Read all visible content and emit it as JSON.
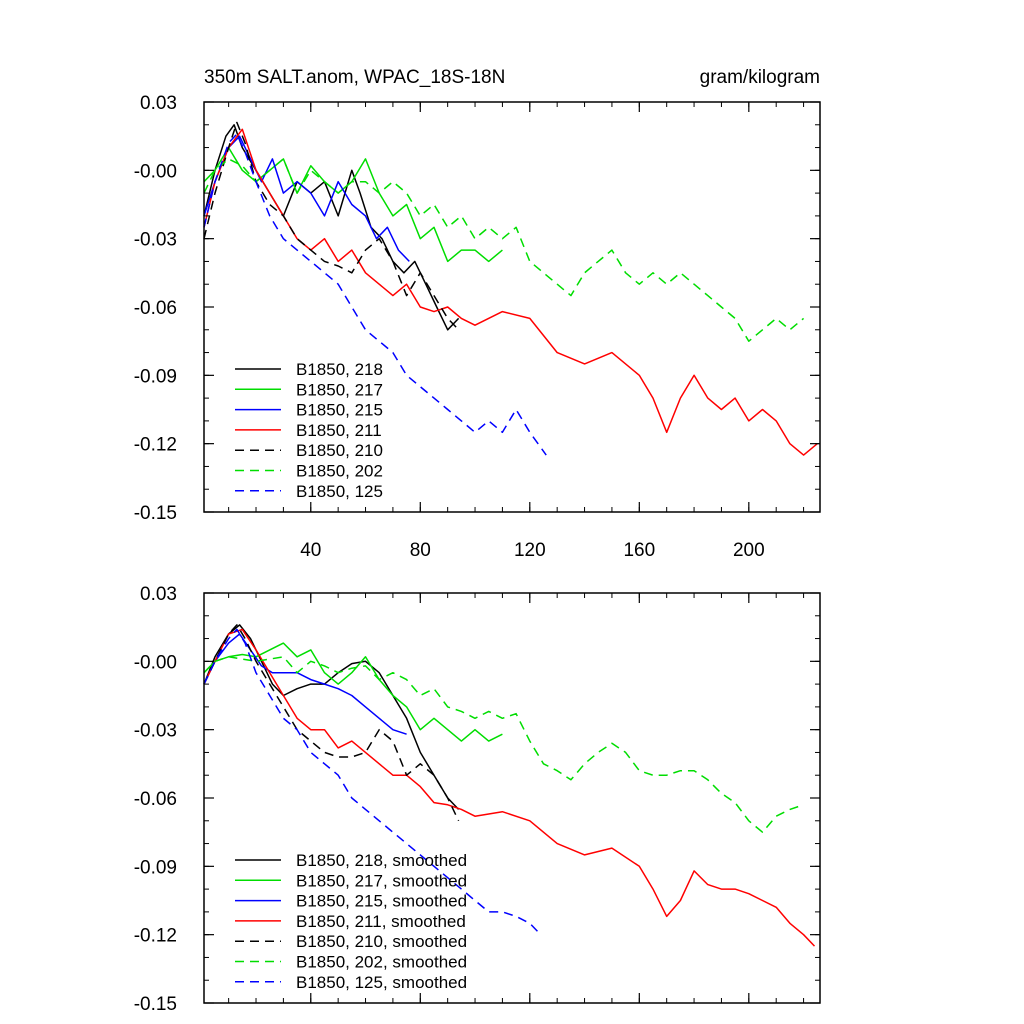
{
  "chart_data": [
    {
      "type": "line",
      "title": "350m SALT.anom, WPAC_18S-18N",
      "units": "gram/kilogram",
      "xlim": [
        1,
        226
      ],
      "ylim": [
        -0.15,
        0.03
      ],
      "xticks": [
        40,
        80,
        120,
        160,
        200
      ],
      "xtick_labels": [
        "40",
        "80",
        "120",
        "160",
        "200"
      ],
      "yticks": [
        0.03,
        0,
        -0.03,
        -0.06,
        -0.09,
        -0.12,
        -0.15
      ],
      "ytick_labels": [
        "0.03",
        "-0.00",
        "-0.03",
        "-0.06",
        "-0.09",
        "-0.12",
        "-0.15"
      ],
      "legend": "bottom-left",
      "series": [
        {
          "name": "B1850, 218",
          "color": "#000000",
          "dash": "solid",
          "x": [
            1,
            5,
            9,
            12,
            15,
            20,
            25,
            30,
            35,
            40,
            45,
            50,
            55,
            58,
            62,
            66,
            70,
            74,
            78,
            82,
            86,
            90,
            94
          ],
          "y": [
            -0.02,
            0.0,
            0.015,
            0.02,
            0.01,
            0.0,
            -0.01,
            -0.02,
            -0.005,
            -0.01,
            -0.005,
            -0.02,
            0.0,
            -0.01,
            -0.025,
            -0.03,
            -0.04,
            -0.045,
            -0.04,
            -0.05,
            -0.06,
            -0.07,
            -0.065
          ]
        },
        {
          "name": "B1850, 217",
          "color": "#00dd00",
          "dash": "solid",
          "x": [
            1,
            5,
            10,
            15,
            20,
            25,
            30,
            35,
            40,
            45,
            50,
            55,
            60,
            65,
            70,
            75,
            80,
            85,
            90,
            95,
            100,
            105,
            110
          ],
          "y": [
            -0.005,
            0.0,
            0.01,
            0.0,
            -0.005,
            0.0,
            0.005,
            -0.01,
            0.002,
            -0.005,
            -0.01,
            -0.005,
            0.005,
            -0.01,
            -0.02,
            -0.015,
            -0.03,
            -0.025,
            -0.04,
            -0.035,
            -0.035,
            -0.04,
            -0.035
          ]
        },
        {
          "name": "B1850, 215",
          "color": "#0000ff",
          "dash": "solid",
          "x": [
            1,
            5,
            10,
            14,
            18,
            22,
            26,
            30,
            35,
            40,
            45,
            50,
            55,
            60,
            64,
            68,
            72,
            76
          ],
          "y": [
            -0.02,
            -0.005,
            0.01,
            0.015,
            0.005,
            -0.005,
            0.005,
            -0.01,
            -0.005,
            -0.01,
            -0.02,
            -0.005,
            -0.015,
            -0.02,
            -0.03,
            -0.025,
            -0.035,
            -0.04
          ]
        },
        {
          "name": "B1850, 211",
          "color": "#ff0000",
          "dash": "solid",
          "x": [
            1,
            5,
            10,
            15,
            20,
            25,
            30,
            35,
            40,
            45,
            50,
            55,
            60,
            65,
            70,
            75,
            80,
            85,
            90,
            95,
            100,
            110,
            120,
            130,
            140,
            150,
            160,
            165,
            170,
            175,
            180,
            185,
            190,
            195,
            200,
            205,
            210,
            215,
            220,
            225
          ],
          "y": [
            -0.025,
            -0.005,
            0.01,
            0.018,
            0.0,
            -0.01,
            -0.02,
            -0.03,
            -0.035,
            -0.03,
            -0.04,
            -0.035,
            -0.045,
            -0.05,
            -0.055,
            -0.05,
            -0.06,
            -0.062,
            -0.06,
            -0.065,
            -0.068,
            -0.062,
            -0.065,
            -0.08,
            -0.085,
            -0.08,
            -0.09,
            -0.1,
            -0.115,
            -0.1,
            -0.09,
            -0.1,
            -0.105,
            -0.1,
            -0.11,
            -0.105,
            -0.11,
            -0.12,
            -0.125,
            -0.12
          ]
        },
        {
          "name": "B1850, 210",
          "color": "#000000",
          "dash": "dashed",
          "x": [
            1,
            5,
            10,
            13,
            16,
            20,
            25,
            30,
            35,
            40,
            45,
            50,
            55,
            60,
            65,
            70,
            75,
            80,
            85,
            90,
            94
          ],
          "y": [
            -0.03,
            -0.01,
            0.01,
            0.021,
            0.012,
            -0.005,
            -0.015,
            -0.02,
            -0.03,
            -0.035,
            -0.04,
            -0.042,
            -0.045,
            -0.035,
            -0.03,
            -0.04,
            -0.055,
            -0.045,
            -0.055,
            -0.065,
            -0.07
          ]
        },
        {
          "name": "B1850, 202",
          "color": "#00dd00",
          "dash": "dashed",
          "x": [
            1,
            5,
            10,
            15,
            20,
            25,
            30,
            35,
            40,
            45,
            50,
            55,
            60,
            65,
            70,
            75,
            80,
            85,
            90,
            95,
            100,
            105,
            110,
            115,
            120,
            125,
            130,
            135,
            140,
            145,
            150,
            155,
            160,
            165,
            170,
            175,
            180,
            185,
            190,
            195,
            200,
            205,
            210,
            215,
            220
          ],
          "y": [
            -0.01,
            0.0,
            0.005,
            0.002,
            -0.005,
            0.0,
            0.005,
            -0.01,
            0.0,
            -0.005,
            -0.01,
            -0.005,
            -0.005,
            -0.01,
            -0.005,
            -0.01,
            -0.02,
            -0.015,
            -0.025,
            -0.02,
            -0.03,
            -0.025,
            -0.03,
            -0.025,
            -0.04,
            -0.045,
            -0.05,
            -0.055,
            -0.045,
            -0.04,
            -0.035,
            -0.045,
            -0.05,
            -0.045,
            -0.05,
            -0.045,
            -0.05,
            -0.055,
            -0.06,
            -0.065,
            -0.075,
            -0.07,
            -0.065,
            -0.07,
            -0.065
          ]
        },
        {
          "name": "B1850, 125",
          "color": "#0000ff",
          "dash": "dashed",
          "x": [
            1,
            5,
            10,
            13,
            16,
            20,
            25,
            30,
            35,
            40,
            45,
            50,
            55,
            60,
            65,
            70,
            75,
            80,
            85,
            90,
            95,
            100,
            105,
            110,
            115,
            120,
            126
          ],
          "y": [
            -0.025,
            -0.005,
            0.012,
            0.016,
            0.008,
            -0.005,
            -0.02,
            -0.03,
            -0.035,
            -0.04,
            -0.045,
            -0.05,
            -0.06,
            -0.07,
            -0.075,
            -0.08,
            -0.09,
            -0.095,
            -0.1,
            -0.105,
            -0.11,
            -0.115,
            -0.11,
            -0.115,
            -0.105,
            -0.115,
            -0.125
          ]
        }
      ]
    },
    {
      "type": "line",
      "title": "",
      "units": "",
      "xlim": [
        1,
        226
      ],
      "ylim": [
        -0.15,
        0.03
      ],
      "xticks": [
        40,
        80,
        120,
        160,
        200
      ],
      "xtick_labels": [],
      "yticks": [
        0.03,
        0,
        -0.03,
        -0.06,
        -0.09,
        -0.12,
        -0.15
      ],
      "ytick_labels": [
        "0.03",
        "-0.00",
        "-0.03",
        "-0.06",
        "-0.09",
        "-0.12",
        "-0.15"
      ],
      "legend": "bottom-left",
      "series": [
        {
          "name": "B1850, 218, smoothed",
          "color": "#000000",
          "dash": "solid",
          "x": [
            1,
            5,
            10,
            14,
            18,
            22,
            26,
            30,
            35,
            40,
            45,
            50,
            55,
            60,
            65,
            70,
            75,
            80,
            85,
            90,
            94
          ],
          "y": [
            -0.01,
            0.002,
            0.012,
            0.016,
            0.01,
            0.0,
            -0.01,
            -0.015,
            -0.012,
            -0.01,
            -0.01,
            -0.005,
            -0.001,
            0.0,
            -0.005,
            -0.015,
            -0.025,
            -0.04,
            -0.05,
            -0.06,
            -0.065
          ]
        },
        {
          "name": "B1850, 217, smoothed",
          "color": "#00dd00",
          "dash": "solid",
          "x": [
            1,
            5,
            10,
            15,
            20,
            25,
            30,
            35,
            40,
            45,
            50,
            55,
            60,
            65,
            70,
            75,
            80,
            85,
            90,
            95,
            100,
            105,
            110
          ],
          "y": [
            -0.005,
            0.0,
            0.002,
            0.003,
            0.002,
            0.005,
            0.008,
            0.002,
            0.005,
            -0.005,
            -0.01,
            -0.005,
            0.002,
            -0.008,
            -0.015,
            -0.02,
            -0.03,
            -0.025,
            -0.03,
            -0.035,
            -0.03,
            -0.035,
            -0.032
          ]
        },
        {
          "name": "B1850, 215, smoothed",
          "color": "#0000ff",
          "dash": "solid",
          "x": [
            1,
            5,
            10,
            14,
            18,
            22,
            26,
            30,
            35,
            40,
            45,
            50,
            55,
            60,
            65,
            70,
            75
          ],
          "y": [
            -0.01,
            0.0,
            0.008,
            0.012,
            0.005,
            -0.002,
            -0.005,
            -0.005,
            -0.005,
            -0.008,
            -0.01,
            -0.012,
            -0.015,
            -0.02,
            -0.025,
            -0.03,
            -0.032
          ]
        },
        {
          "name": "B1850, 211, smoothed",
          "color": "#ff0000",
          "dash": "solid",
          "x": [
            1,
            5,
            10,
            15,
            20,
            25,
            30,
            35,
            40,
            45,
            50,
            55,
            60,
            65,
            70,
            75,
            80,
            85,
            90,
            95,
            100,
            110,
            120,
            130,
            140,
            150,
            160,
            165,
            170,
            175,
            180,
            185,
            190,
            195,
            200,
            205,
            210,
            215,
            220,
            224
          ],
          "y": [
            -0.01,
            0.0,
            0.012,
            0.014,
            0.005,
            -0.005,
            -0.015,
            -0.025,
            -0.03,
            -0.03,
            -0.038,
            -0.035,
            -0.04,
            -0.045,
            -0.05,
            -0.05,
            -0.055,
            -0.062,
            -0.063,
            -0.065,
            -0.068,
            -0.066,
            -0.07,
            -0.08,
            -0.085,
            -0.082,
            -0.09,
            -0.1,
            -0.112,
            -0.105,
            -0.092,
            -0.098,
            -0.1,
            -0.1,
            -0.102,
            -0.105,
            -0.108,
            -0.115,
            -0.12,
            -0.125
          ]
        },
        {
          "name": "B1850, 210, smoothed",
          "color": "#000000",
          "dash": "dashed",
          "x": [
            1,
            5,
            10,
            13,
            16,
            20,
            25,
            30,
            35,
            40,
            45,
            50,
            55,
            60,
            65,
            70,
            75,
            80,
            85,
            90,
            94
          ],
          "y": [
            -0.01,
            0.0,
            0.012,
            0.016,
            0.01,
            0.0,
            -0.01,
            -0.02,
            -0.03,
            -0.035,
            -0.04,
            -0.042,
            -0.042,
            -0.04,
            -0.03,
            -0.035,
            -0.05,
            -0.045,
            -0.05,
            -0.06,
            -0.07
          ]
        },
        {
          "name": "B1850, 202, smoothed",
          "color": "#00dd00",
          "dash": "dashed",
          "x": [
            1,
            5,
            10,
            15,
            20,
            25,
            30,
            35,
            40,
            45,
            50,
            55,
            60,
            65,
            70,
            75,
            80,
            85,
            90,
            95,
            100,
            105,
            110,
            115,
            120,
            125,
            130,
            135,
            140,
            145,
            150,
            155,
            160,
            165,
            170,
            175,
            180,
            185,
            190,
            195,
            200,
            205,
            210,
            215,
            220
          ],
          "y": [
            -0.005,
            0.0,
            0.002,
            0.001,
            0.0,
            0.001,
            0.002,
            -0.005,
            0.0,
            -0.002,
            -0.005,
            -0.003,
            -0.002,
            -0.008,
            -0.005,
            -0.008,
            -0.015,
            -0.012,
            -0.02,
            -0.022,
            -0.025,
            -0.022,
            -0.025,
            -0.023,
            -0.035,
            -0.045,
            -0.048,
            -0.052,
            -0.045,
            -0.04,
            -0.036,
            -0.04,
            -0.048,
            -0.05,
            -0.05,
            -0.048,
            -0.048,
            -0.052,
            -0.058,
            -0.062,
            -0.07,
            -0.075,
            -0.068,
            -0.065,
            -0.063
          ]
        },
        {
          "name": "B1850, 125, smoothed",
          "color": "#0000ff",
          "dash": "dashed",
          "x": [
            1,
            5,
            10,
            13,
            16,
            20,
            25,
            30,
            35,
            40,
            45,
            50,
            55,
            60,
            65,
            70,
            75,
            80,
            85,
            90,
            95,
            100,
            105,
            110,
            115,
            120,
            124
          ],
          "y": [
            -0.01,
            0.0,
            0.01,
            0.014,
            0.008,
            -0.005,
            -0.015,
            -0.025,
            -0.03,
            -0.04,
            -0.045,
            -0.05,
            -0.06,
            -0.065,
            -0.07,
            -0.075,
            -0.08,
            -0.085,
            -0.09,
            -0.095,
            -0.1,
            -0.105,
            -0.11,
            -0.11,
            -0.112,
            -0.115,
            -0.12
          ]
        }
      ]
    }
  ]
}
